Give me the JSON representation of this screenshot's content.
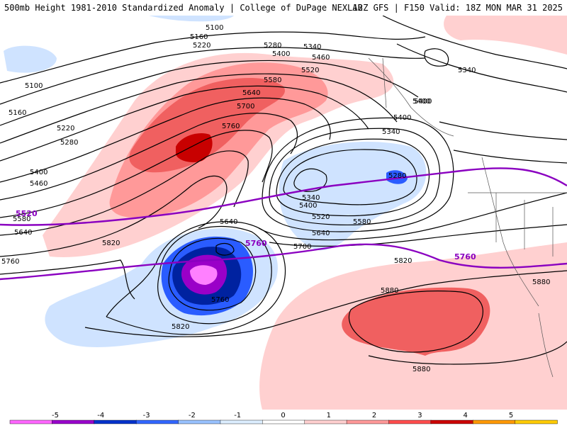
{
  "header": {
    "title_left": "500mb Height 1981-2010 Standardized Anomaly | College of DuPage NEXLAB",
    "title_right": "12Z GFS | F150 Valid: 18Z MON MAR 31 2025"
  },
  "contour_labels": [
    {
      "id": "c5100a",
      "text": "5100"
    },
    {
      "id": "c5160a",
      "text": "5160"
    },
    {
      "id": "c5220a",
      "text": "5220"
    },
    {
      "id": "c5280a",
      "text": "5280"
    },
    {
      "id": "c5340a",
      "text": "5340"
    },
    {
      "id": "c5400a",
      "text": "5400"
    },
    {
      "id": "c5460a",
      "text": "5460"
    },
    {
      "id": "c5520a",
      "text": "5520"
    },
    {
      "id": "c5580a",
      "text": "5580"
    },
    {
      "id": "c5640a",
      "text": "5640"
    },
    {
      "id": "c5700a",
      "text": "5700"
    },
    {
      "id": "c5760a",
      "text": "5760"
    },
    {
      "id": "c5100b",
      "text": "5100"
    },
    {
      "id": "c5160b",
      "text": "5160"
    },
    {
      "id": "c5220b",
      "text": "5220"
    },
    {
      "id": "c5280b",
      "text": "5280"
    },
    {
      "id": "c5400b",
      "text": "5400"
    },
    {
      "id": "c5460b",
      "text": "5460"
    },
    {
      "id": "c5580b",
      "text": "5580"
    },
    {
      "id": "c5640b",
      "text": "5640"
    },
    {
      "id": "c5760b",
      "text": "5760"
    },
    {
      "id": "c5820a",
      "text": "5820"
    },
    {
      "id": "c5640c",
      "text": "5640"
    },
    {
      "id": "c5700b",
      "text": "5700"
    },
    {
      "id": "c5760c",
      "text": "5760"
    },
    {
      "id": "c5820b",
      "text": "5820"
    },
    {
      "id": "c5340b",
      "text": "5340"
    },
    {
      "id": "c5400c",
      "text": "5400"
    },
    {
      "id": "c5280c",
      "text": "5280"
    },
    {
      "id": "c5400d",
      "text": "5400"
    },
    {
      "id": "c5340c",
      "text": "5340"
    },
    {
      "id": "c5400e",
      "text": "5400"
    },
    {
      "id": "c5520b",
      "text": "5520"
    },
    {
      "id": "c5580c",
      "text": "5580"
    },
    {
      "id": "c5640d",
      "text": "5640"
    },
    {
      "id": "c5820c",
      "text": "5820"
    },
    {
      "id": "c5880a",
      "text": "5880"
    },
    {
      "id": "c5880b",
      "text": "5880"
    },
    {
      "id": "c5880c",
      "text": "5880"
    },
    {
      "id": "c5340d",
      "text": "5340"
    },
    {
      "id": "c5400f",
      "text": "5400"
    }
  ],
  "purple_labels": {
    "p5520": "5520",
    "p5760a": "5760",
    "p5760b": "5760"
  },
  "colorbar": {
    "ticks": [
      "-5",
      "-4",
      "-3",
      "-2",
      "-1",
      "0",
      "1",
      "2",
      "3",
      "4",
      "5"
    ],
    "colors": [
      "#ff66ff",
      "#9900cc",
      "#0033cc",
      "#3366ff",
      "#6699ff",
      "#cce0ff",
      "#ffffff",
      "#ffcccc",
      "#ff9999",
      "#ff6666",
      "#e62e2e",
      "#cc0000",
      "#ff9900",
      "#ffcc00"
    ]
  },
  "colors": {
    "purple_line": "#8a00c0",
    "positive_light": "#ffd0d0",
    "positive_mid": "#ff9999",
    "positive_strong": "#f06060",
    "positive_max": "#c80000",
    "negative_light": "#cfe3ff",
    "negative_mid": "#7fa8ff",
    "negative_strong": "#2a5cff",
    "negative_deep": "#0022a0",
    "negative_max": "#9a00c8",
    "negative_extreme": "#ff80ff"
  }
}
